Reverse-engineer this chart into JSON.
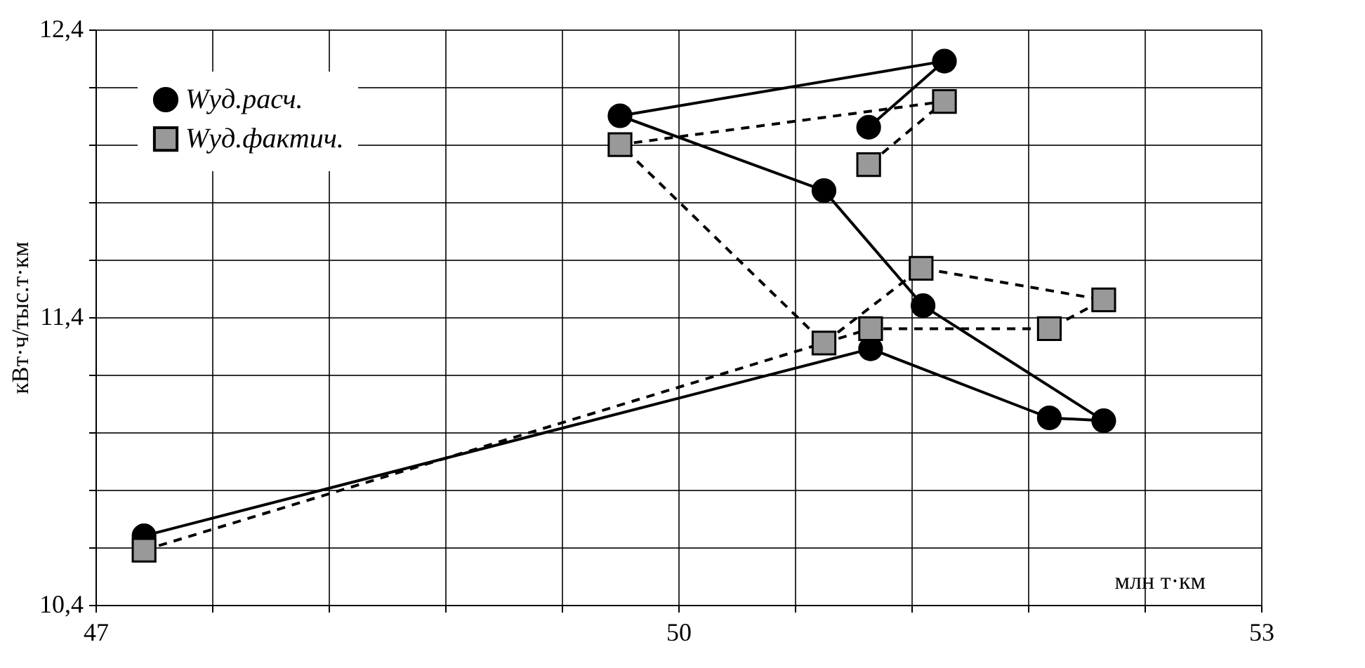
{
  "chart_data": {
    "type": "line",
    "xlabel": "млн т·км",
    "ylabel": "кВт·ч/тыс.т·км",
    "xlim": [
      47,
      53
    ],
    "ylim": [
      10.4,
      12.4
    ],
    "xticks": [
      47,
      {
        "value": 47.6,
        "label": null
      },
      {
        "value": 48.2,
        "label": null
      },
      {
        "value": 48.8,
        "label": null
      },
      {
        "value": 49.4,
        "label": null
      },
      50,
      {
        "value": 50.6,
        "label": null
      },
      {
        "value": 51.2,
        "label": null
      },
      {
        "value": 51.8,
        "label": null
      },
      {
        "value": 52.4,
        "label": null
      },
      53
    ],
    "yticks": [
      {
        "value": 10.4,
        "label": "10,4"
      },
      {
        "value": 10.6,
        "label": null
      },
      {
        "value": 10.8,
        "label": null
      },
      {
        "value": 11.0,
        "label": null
      },
      {
        "value": 11.2,
        "label": null
      },
      {
        "value": 11.4,
        "label": "11,4"
      },
      {
        "value": 11.6,
        "label": null
      },
      {
        "value": 11.8,
        "label": null
      },
      {
        "value": 12.0,
        "label": null
      },
      {
        "value": 12.2,
        "label": null
      },
      {
        "value": 12.4,
        "label": "12,4"
      }
    ],
    "grid": true,
    "legend": "top left",
    "series": [
      {
        "name": "Wуд.расч.",
        "color": "#000000",
        "marker": "circle",
        "line_style": "solid",
        "x": [
          47.25,
          50.99,
          51.91,
          52.19,
          51.26,
          50.75,
          49.7,
          51.37,
          50.98
        ],
        "values": [
          10.64,
          11.29,
          11.05,
          11.04,
          11.44,
          11.84,
          12.1,
          12.29,
          12.06
        ]
      },
      {
        "name": "Wуд.фактич.",
        "color": "#999999",
        "marker": "square",
        "line_style": "dashed",
        "x": [
          47.25,
          50.99,
          51.91,
          52.19,
          51.25,
          50.75,
          49.7,
          51.37,
          50.98
        ],
        "values": [
          10.59,
          11.36,
          11.36,
          11.46,
          11.57,
          11.31,
          12.0,
          12.15,
          11.93
        ]
      }
    ]
  }
}
